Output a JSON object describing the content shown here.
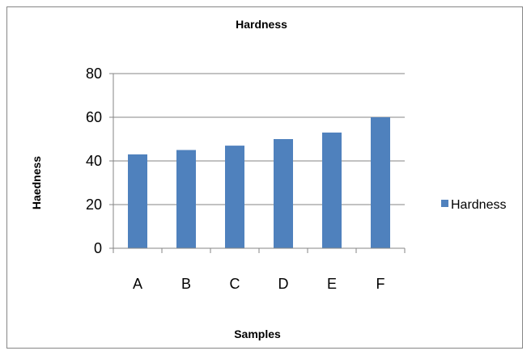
{
  "chart_data": {
    "type": "bar",
    "title": "Hardness",
    "xlabel": "Samples",
    "ylabel": "Haedness",
    "categories": [
      "A",
      "B",
      "C",
      "D",
      "E",
      "F"
    ],
    "series": [
      {
        "name": "Hardness",
        "values": [
          43,
          45,
          47,
          50,
          53,
          60
        ]
      }
    ],
    "ylim": [
      0,
      80
    ],
    "yticks": [
      "0",
      "20",
      "40",
      "60",
      "80"
    ],
    "grid": true,
    "legend_position": "right",
    "colors": {
      "bar": "#4f81bd",
      "grid": "#868686",
      "axis": "#868686"
    }
  }
}
